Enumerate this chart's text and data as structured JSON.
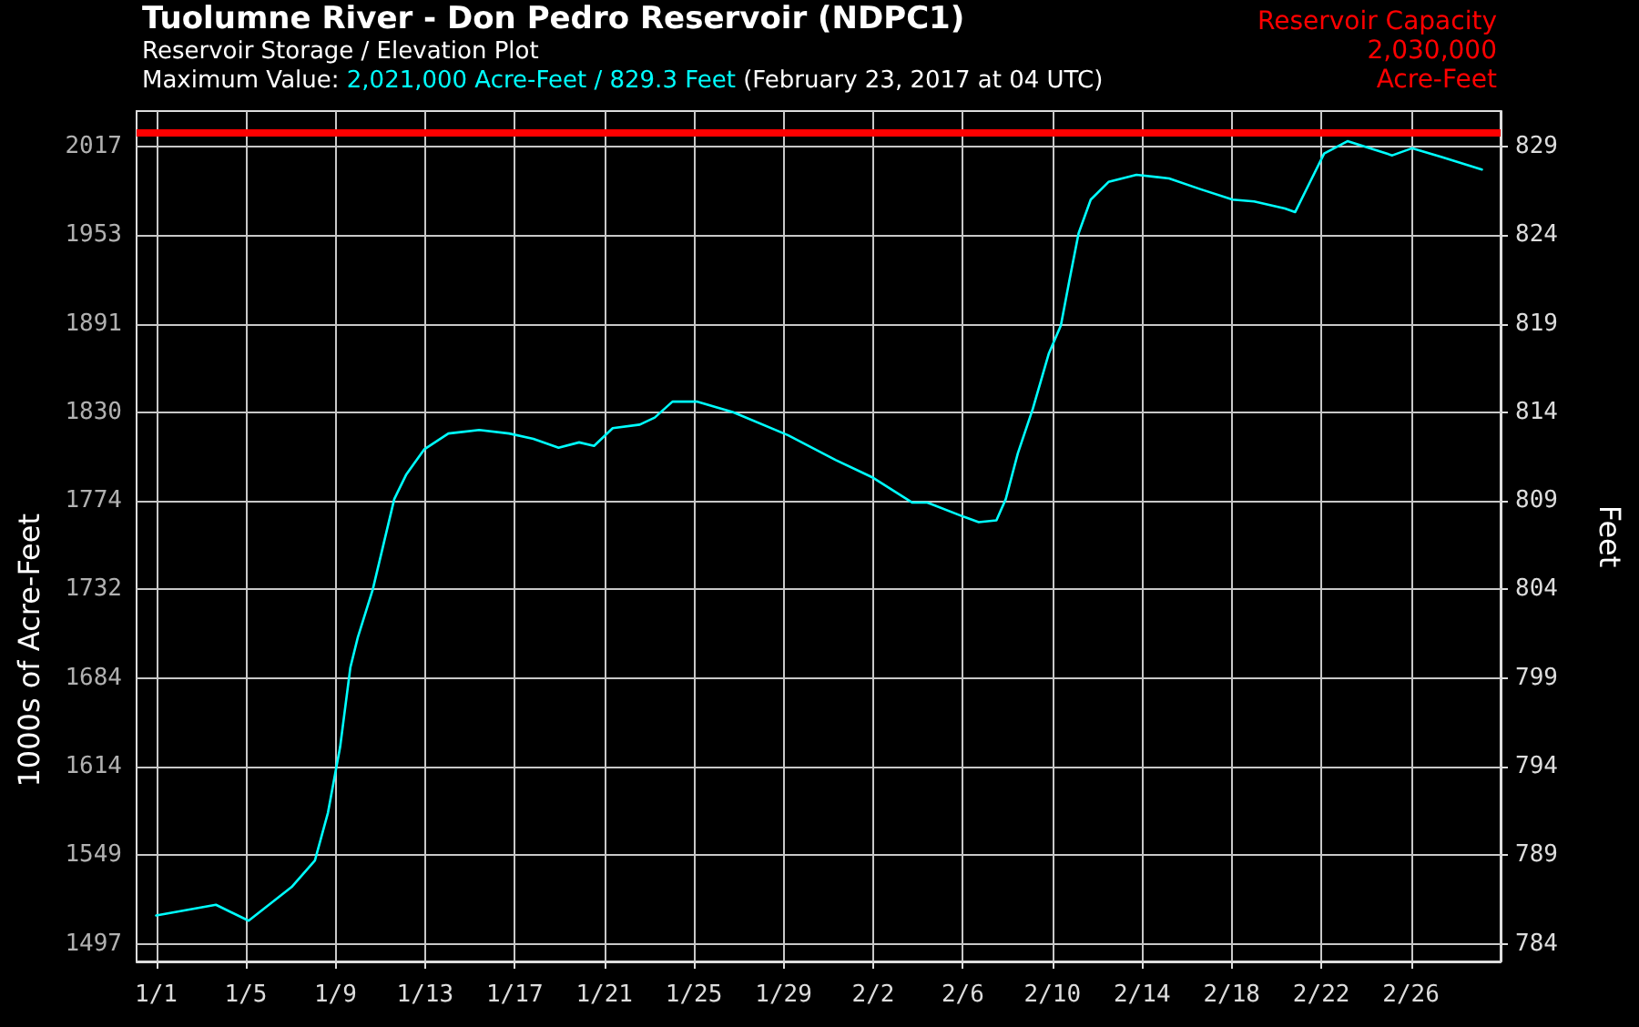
{
  "chart_data": {
    "type": "line",
    "title": "Tuolumne River - Don Pedro Reservoir (NDPC1)",
    "subtitle": "Reservoir Storage / Elevation Plot",
    "annotations": [
      "Maximum Value:",
      "2,021,000 Acre-Feet / 829.3 Feet",
      "(February 23, 2017 at 04 UTC)",
      "1000s of Acre-Feet",
      "1497",
      "1549",
      "1614",
      "1684",
      "1732",
      "1774",
      "1830",
      "1891",
      "1953",
      "2017"
    ],
    "ylabel": "Feet",
    "x": [
      "2017-01-01T00:00",
      "2017-01-03T16:00",
      "2017-01-05T03:00",
      "2017-01-07T01:00",
      "2017-01-08T02:00",
      "2017-01-08T16:00",
      "2017-01-09T05:00",
      "2017-01-09T16:00",
      "2017-01-10T00:00",
      "2017-01-10T16:00",
      "2017-01-11T15:00",
      "2017-01-12T04:00",
      "2017-01-12T23:00",
      "2017-01-14T01:00",
      "2017-01-15T10:00",
      "2017-01-16T18:00",
      "2017-01-17T20:00",
      "2017-01-18T23:00",
      "2017-01-19T21:00",
      "2017-01-20T13:00",
      "2017-01-21T09:00",
      "2017-01-22T14:00",
      "2017-01-23T06:00",
      "2017-01-24T01:00",
      "2017-01-25T03:00",
      "2017-01-26T18:00",
      "2017-01-29T05:00",
      "2017-01-31T08:00",
      "2017-02-02T00:00",
      "2017-02-03T18:00",
      "2017-02-04T10:00",
      "2017-02-06T01:00",
      "2017-02-06T17:00",
      "2017-02-07T12:00",
      "2017-02-07T22:00",
      "2017-02-08T11:00",
      "2017-02-09T03:00",
      "2017-02-09T20:00",
      "2017-02-10T09:00",
      "2017-02-10T18:00",
      "2017-02-11T04:00",
      "2017-02-11T17:00",
      "2017-02-12T12:00",
      "2017-02-13T18:00",
      "2017-02-15T05:00",
      "2017-02-16T14:00",
      "2017-02-18T01:00",
      "2017-02-19T00:00",
      "2017-02-20T09:00",
      "2017-02-20T20:00",
      "2017-02-21T11:00",
      "2017-02-22T03:00",
      "2017-02-23T04:00",
      "2017-02-24T10:00",
      "2017-02-25T04:00",
      "2017-02-26T01:00",
      "2017-02-27T09:00",
      "2017-03-01T04:00"
    ],
    "series": [
      {
        "color": "#00ffff",
        "values": [
          785.6,
          786.2,
          785.3,
          787.2,
          788.7,
          791.4,
          795.1,
          799.6,
          801.3,
          804.0,
          809.1,
          810.5,
          811.9,
          812.8,
          813.0,
          812.8,
          812.5,
          812.0,
          812.3,
          812.1,
          813.1,
          813.3,
          813.7,
          814.6,
          814.6,
          814.0,
          812.7,
          811.3,
          810.3,
          808.9,
          808.9,
          808.1,
          807.8,
          807.9,
          809.1,
          811.7,
          814.2,
          817.3,
          818.9,
          821.4,
          824.1,
          826.0,
          827.0,
          827.4,
          827.2,
          826.6,
          826.0,
          825.9,
          825.5,
          825.3,
          826.9,
          828.6,
          829.3,
          828.8,
          828.5,
          828.9,
          828.4,
          827.7
        ]
      }
    ],
    "xlim": [
      "2016-12-31T03:00",
      "2017-03-02T00:00"
    ],
    "xticks": [
      {
        "value": "2017-01-01",
        "label": "1/1"
      },
      {
        "value": "2017-01-05",
        "label": "1/5"
      },
      {
        "value": "2017-01-09",
        "label": "1/9"
      },
      {
        "value": "2017-01-13",
        "label": "1/13"
      },
      {
        "value": "2017-01-17",
        "label": "1/17"
      },
      {
        "value": "2017-01-21",
        "label": "1/21"
      },
      {
        "value": "2017-01-25",
        "label": "1/25"
      },
      {
        "value": "2017-01-29",
        "label": "1/29"
      },
      {
        "value": "2017-02-02",
        "label": "2/2"
      },
      {
        "value": "2017-02-06",
        "label": "2/6"
      },
      {
        "value": "2017-02-10",
        "label": "2/10"
      },
      {
        "value": "2017-02-14",
        "label": "2/14"
      },
      {
        "value": "2017-02-18",
        "label": "2/18"
      },
      {
        "value": "2017-02-22",
        "label": "2/22"
      },
      {
        "value": "2017-02-26",
        "label": "2/26"
      }
    ],
    "ylim": [
      783,
      831
    ],
    "yticks": [
      784,
      789,
      794,
      799,
      804,
      809,
      814,
      819,
      824,
      829
    ],
    "ref_lines": [
      {
        "axis": "y",
        "value": 829.8,
        "label": "Reservoir Capacity\n2,030,000\nAcre-Feet",
        "color": "#ff0000"
      }
    ],
    "grid": true,
    "marker": "none",
    "line_style": "solid"
  }
}
